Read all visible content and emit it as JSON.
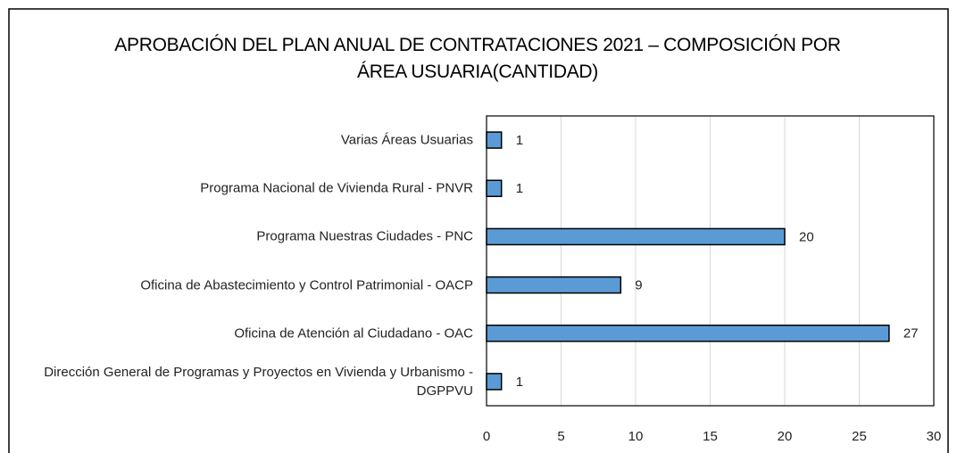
{
  "chart_data": {
    "type": "bar",
    "orientation": "horizontal",
    "title": "APROBACIÓN DEL PLAN ANUAL DE CONTRATACIONES 2021 – COMPOSICIÓN POR ÁREA USUARIA(CANTIDAD)",
    "categories": [
      "Varias Áreas Usuarias",
      "Programa Nacional de Vivienda Rural - PNVR",
      "Programa Nuestras Ciudades - PNC",
      "Oficina de Abastecimiento y Control Patrimonial - OACP",
      "Oficina de Atención al Ciudadano - OAC",
      "Dirección General de Programas y Proyectos en Vivienda y Urbanismo - DGPPVU"
    ],
    "values": [
      1,
      1,
      20,
      9,
      27,
      1
    ],
    "color": "#5b9bd5",
    "xlim": [
      0,
      30
    ],
    "xticks": [
      0,
      5,
      10,
      15,
      20,
      25,
      30
    ],
    "grid": true
  }
}
